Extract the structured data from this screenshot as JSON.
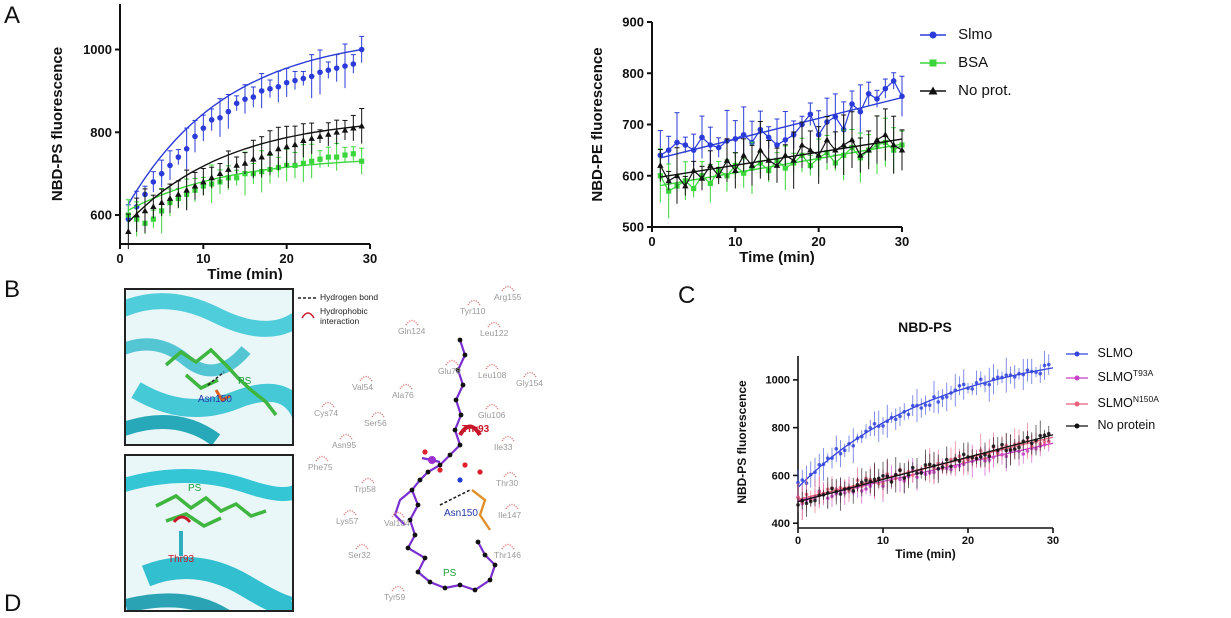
{
  "panels": {
    "A": "A",
    "B": "B",
    "C": "C",
    "D": "D"
  },
  "chart_data": [
    {
      "id": "A-left",
      "type": "line",
      "ylabel": "NBD-PS fluorescence",
      "xlabel": "Time (min)",
      "xlim": [
        0,
        30
      ],
      "ylim": [
        530,
        1110
      ],
      "xticks": [
        0,
        10,
        20,
        30
      ],
      "yticks": [
        600,
        800,
        1000
      ],
      "series": [
        {
          "name": "Slmo",
          "color": "#2b3bd9",
          "x": [
            1,
            2,
            3,
            4,
            5,
            6,
            7,
            8,
            9,
            10,
            11,
            12,
            13,
            14,
            15,
            16,
            17,
            18,
            19,
            20,
            21,
            22,
            23,
            24,
            25,
            26,
            27,
            28,
            29
          ],
          "values": [
            590,
            620,
            650,
            680,
            700,
            720,
            740,
            760,
            790,
            810,
            830,
            835,
            850,
            870,
            880,
            885,
            900,
            905,
            910,
            920,
            925,
            930,
            935,
            945,
            950,
            955,
            960,
            965,
            1000
          ]
        },
        {
          "name": "BSA",
          "color": "#3bd63b",
          "x": [
            1,
            2,
            3,
            4,
            5,
            6,
            7,
            8,
            9,
            10,
            11,
            12,
            13,
            14,
            15,
            16,
            17,
            18,
            19,
            20,
            21,
            22,
            23,
            24,
            25,
            26,
            27,
            28,
            29
          ],
          "values": [
            600,
            590,
            580,
            590,
            610,
            630,
            640,
            650,
            660,
            670,
            675,
            680,
            690,
            690,
            700,
            700,
            705,
            710,
            715,
            720,
            720,
            725,
            730,
            735,
            740,
            740,
            745,
            748,
            730
          ]
        },
        {
          "name": "No prot.",
          "color": "#111111",
          "x": [
            1,
            2,
            3,
            4,
            5,
            6,
            7,
            8,
            9,
            10,
            11,
            12,
            13,
            14,
            15,
            16,
            17,
            18,
            19,
            20,
            21,
            22,
            23,
            24,
            25,
            26,
            27,
            28,
            29
          ],
          "values": [
            560,
            600,
            610,
            620,
            630,
            640,
            650,
            660,
            670,
            680,
            690,
            700,
            710,
            720,
            725,
            735,
            740,
            750,
            760,
            765,
            770,
            780,
            785,
            790,
            795,
            800,
            805,
            810,
            815
          ]
        }
      ]
    },
    {
      "id": "A-right",
      "type": "line",
      "ylabel": "NBD-PE fluorescence",
      "xlabel": "Time (min)",
      "xlim": [
        0,
        30
      ],
      "ylim": [
        500,
        900
      ],
      "xticks": [
        0,
        10,
        20,
        30
      ],
      "yticks": [
        500,
        600,
        700,
        800,
        900
      ],
      "series": [
        {
          "name": "Slmo",
          "color": "#2b3bd9",
          "x": [
            1,
            2,
            3,
            4,
            5,
            6,
            7,
            8,
            9,
            10,
            11,
            12,
            13,
            14,
            15,
            16,
            17,
            18,
            19,
            20,
            21,
            22,
            23,
            24,
            25,
            26,
            27,
            28,
            29,
            30
          ],
          "values": [
            640,
            650,
            665,
            660,
            650,
            675,
            660,
            655,
            668,
            672,
            680,
            665,
            690,
            675,
            660,
            670,
            680,
            700,
            720,
            680,
            705,
            715,
            690,
            740,
            725,
            760,
            750,
            770,
            785,
            755
          ]
        },
        {
          "name": "BSA",
          "color": "#3bd63b",
          "x": [
            1,
            2,
            3,
            4,
            5,
            6,
            7,
            8,
            9,
            10,
            11,
            12,
            13,
            14,
            15,
            16,
            17,
            18,
            19,
            20,
            21,
            22,
            23,
            24,
            25,
            26,
            27,
            28,
            29,
            30
          ],
          "values": [
            600,
            570,
            580,
            590,
            575,
            600,
            585,
            610,
            600,
            620,
            605,
            615,
            625,
            610,
            630,
            615,
            625,
            640,
            620,
            635,
            645,
            625,
            640,
            655,
            635,
            650,
            660,
            665,
            650,
            660
          ]
        },
        {
          "name": "No prot.",
          "color": "#111111",
          "x": [
            1,
            2,
            3,
            4,
            5,
            6,
            7,
            8,
            9,
            10,
            11,
            12,
            13,
            14,
            15,
            16,
            17,
            18,
            19,
            20,
            21,
            22,
            23,
            24,
            25,
            26,
            27,
            28,
            29,
            30
          ],
          "values": [
            620,
            590,
            600,
            580,
            610,
            595,
            620,
            600,
            630,
            610,
            640,
            620,
            650,
            630,
            620,
            640,
            630,
            660,
            650,
            640,
            670,
            650,
            660,
            670,
            640,
            650,
            670,
            680,
            660,
            650
          ]
        }
      ],
      "legend": {
        "placement": "right",
        "entries": [
          "Slmo",
          "BSA",
          "No prot."
        ]
      }
    },
    {
      "id": "C",
      "type": "line",
      "title": "NBD-PS",
      "ylabel": "NBD-PS fluorescence",
      "xlabel": "Time (min)",
      "xlim": [
        0,
        30
      ],
      "ylim": [
        380,
        1100
      ],
      "xticks": [
        0,
        10,
        20,
        30
      ],
      "yticks": [
        400,
        600,
        800,
        1000
      ],
      "series": [
        {
          "name": "SLMO",
          "color": "#3344dd",
          "fit_start": 550,
          "fit_end": 1050,
          "fit_k": 0.06
        },
        {
          "name": "SLMO T93A",
          "color": "#c83fc8",
          "fit_start": 495,
          "fit_end": 735,
          "fit_k": 0.0
        },
        {
          "name": "SLMO N150A",
          "color": "#e8607a",
          "fit_start": 500,
          "fit_end": 760,
          "fit_k": 0.0
        },
        {
          "name": "No protein",
          "color": "#111111",
          "fit_start": 490,
          "fit_end": 770,
          "fit_k": 0.0
        }
      ],
      "legend": {
        "placement": "top-right",
        "entries": [
          {
            "main": "SLMO",
            "sup": ""
          },
          {
            "main": "SLMO",
            "sup": "T93A"
          },
          {
            "main": "SLMO",
            "sup": "N150A"
          },
          {
            "main": "No protein",
            "sup": ""
          }
        ]
      }
    }
  ],
  "panelB": {
    "inset1_labels": {
      "ps": "PS",
      "residue": "Asn150"
    },
    "inset2_labels": {
      "ps": "PS",
      "residue": "Thr93"
    },
    "legend": {
      "hbond": "Hydrogen bond",
      "hydrophobic": "Hydrophobic interaction"
    },
    "ligand_labels": {
      "ps": "PS",
      "asn": "Asn150",
      "thr": "Thr93"
    },
    "residues": [
      "Tyr110",
      "Arg155",
      "Gln124",
      "Leu122",
      "Glu78",
      "Leu108",
      "Gly154",
      "Val54",
      "Ala76",
      "Cys74",
      "Ser56",
      "Glu106",
      "Asn95",
      "Ile33",
      "Phe75",
      "Thr30",
      "Trp58",
      "Lys57",
      "Val104",
      "Ile147",
      "Ser32",
      "Thr146",
      "Tyr59"
    ]
  }
}
